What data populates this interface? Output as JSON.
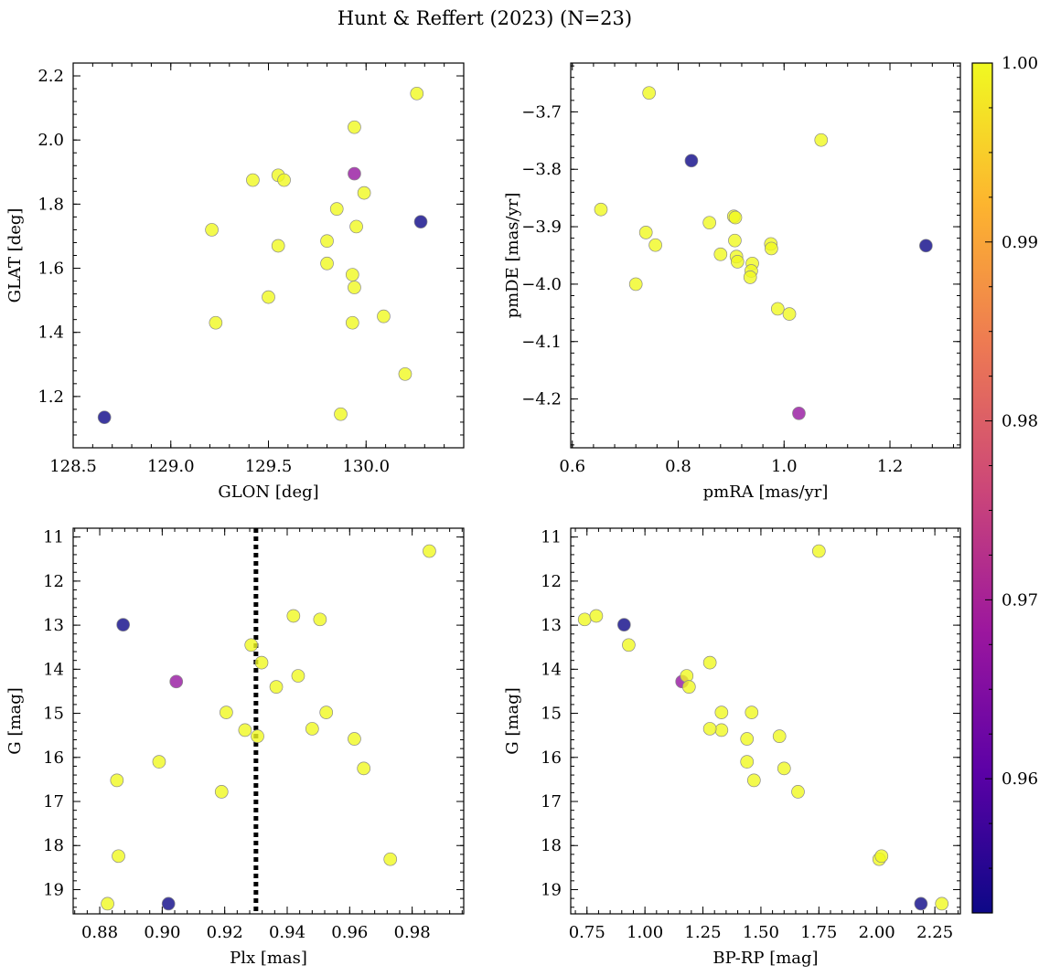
{
  "figure": {
    "title": "Hunt & Reffert (2023) (N=23)"
  },
  "colors": {
    "point_edge": "#8a8a8a",
    "frame": "#000000",
    "vline": "#000000",
    "colormap": [
      "#0d0887",
      "#5c01a6",
      "#9c179e",
      "#cc4778",
      "#ed7953",
      "#fdb42f",
      "#f0f921"
    ],
    "colormap_name": "plasma",
    "point_alpha": 0.8
  },
  "colorbar": {
    "range": [
      0.9525,
      1.0
    ],
    "ticks": [
      {
        "value": 0.96,
        "label": "0.96"
      },
      {
        "value": 0.97,
        "label": "0.97"
      },
      {
        "value": 0.98,
        "label": "0.98"
      },
      {
        "value": 0.99,
        "label": "0.99"
      },
      {
        "value": 1.0,
        "label": "1.00"
      }
    ]
  },
  "chart_data": [
    {
      "type": "scatter",
      "xlabel": "GLON [deg]",
      "ylabel": "GLAT [deg]",
      "xlim": [
        128.5,
        130.5
      ],
      "ylim": [
        1.04,
        2.24
      ],
      "y_inverted": false,
      "xticks": [
        {
          "value": 128.5,
          "label": "128.5"
        },
        {
          "value": 129.0,
          "label": "129.0"
        },
        {
          "value": 129.5,
          "label": "129.5"
        },
        {
          "value": 130.0,
          "label": "130.0"
        }
      ],
      "yticks": [
        {
          "value": 1.2,
          "label": "1.2"
        },
        {
          "value": 1.4,
          "label": "1.4"
        },
        {
          "value": 1.6,
          "label": "1.6"
        },
        {
          "value": 1.8,
          "label": "1.8"
        },
        {
          "value": 2.0,
          "label": "2.0"
        },
        {
          "value": 2.2,
          "label": "2.2"
        }
      ],
      "x": [
        128.66,
        129.94,
        130.28,
        130.26,
        129.94,
        129.55,
        129.42,
        129.58,
        129.99,
        129.85,
        129.95,
        129.21,
        129.55,
        129.8,
        129.8,
        129.93,
        129.94,
        129.5,
        130.09,
        129.23,
        129.93,
        130.2,
        129.87
      ],
      "y": [
        1.135,
        1.895,
        1.745,
        2.145,
        2.04,
        1.89,
        1.875,
        1.875,
        1.835,
        1.785,
        1.73,
        1.72,
        1.67,
        1.685,
        1.615,
        1.58,
        1.54,
        1.51,
        1.45,
        1.43,
        1.43,
        1.27,
        1.145
      ],
      "c": [
        0.9525,
        0.9675,
        0.9525,
        1.0,
        1.0,
        1.0,
        1.0,
        1.0,
        1.0,
        1.0,
        1.0,
        1.0,
        1.0,
        1.0,
        1.0,
        1.0,
        1.0,
        1.0,
        1.0,
        1.0,
        1.0,
        1.0,
        1.0
      ]
    },
    {
      "type": "scatter",
      "xlabel": "pmRA [mas/yr]",
      "ylabel": "pmDE [mas/yr]",
      "xlim": [
        0.597,
        1.333
      ],
      "ylim": [
        -4.285,
        -3.615
      ],
      "y_inverted": false,
      "xticks": [
        {
          "value": 0.6,
          "label": "0.6"
        },
        {
          "value": 0.8,
          "label": "0.8"
        },
        {
          "value": 1.0,
          "label": "1.0"
        },
        {
          "value": 1.2,
          "label": "1.2"
        }
      ],
      "yticks": [
        {
          "value": -4.2,
          "label": "−4.2"
        },
        {
          "value": -4.1,
          "label": "−4.1"
        },
        {
          "value": -4.0,
          "label": "−4.0"
        },
        {
          "value": -3.9,
          "label": "−3.9"
        },
        {
          "value": -3.8,
          "label": "−3.8"
        },
        {
          "value": -3.7,
          "label": "−3.7"
        }
      ],
      "x": [
        0.825,
        1.028,
        1.268,
        0.745,
        1.07,
        0.654,
        0.859,
        0.905,
        0.908,
        0.739,
        0.757,
        0.907,
        0.975,
        0.976,
        0.88,
        0.91,
        0.912,
        0.94,
        0.938,
        0.936,
        0.72,
        0.988,
        1.01
      ],
      "y": [
        -3.785,
        -4.225,
        -3.933,
        -3.667,
        -3.749,
        -3.87,
        -3.893,
        -3.882,
        -3.884,
        -3.91,
        -3.932,
        -3.924,
        -3.93,
        -3.938,
        -3.948,
        -3.952,
        -3.961,
        -3.964,
        -3.977,
        -3.988,
        -4.0,
        -4.043,
        -4.052
      ],
      "c": [
        0.9525,
        0.9675,
        0.9525,
        1.0,
        1.0,
        1.0,
        1.0,
        1.0,
        1.0,
        1.0,
        1.0,
        1.0,
        1.0,
        1.0,
        1.0,
        1.0,
        1.0,
        1.0,
        1.0,
        1.0,
        1.0,
        1.0,
        1.0
      ]
    },
    {
      "type": "scatter",
      "xlabel": "Plx [mas]",
      "ylabel": "G [mag]",
      "xlim": [
        0.8715,
        0.9965
      ],
      "ylim": [
        10.8,
        19.55
      ],
      "y_inverted": true,
      "vline": 0.93,
      "xticks": [
        {
          "value": 0.88,
          "label": "0.88"
        },
        {
          "value": 0.9,
          "label": "0.90"
        },
        {
          "value": 0.92,
          "label": "0.92"
        },
        {
          "value": 0.94,
          "label": "0.94"
        },
        {
          "value": 0.96,
          "label": "0.96"
        },
        {
          "value": 0.98,
          "label": "0.98"
        }
      ],
      "yticks": [
        {
          "value": 11,
          "label": "11"
        },
        {
          "value": 12,
          "label": "12"
        },
        {
          "value": 13,
          "label": "13"
        },
        {
          "value": 14,
          "label": "14"
        },
        {
          "value": 15,
          "label": "15"
        },
        {
          "value": 16,
          "label": "16"
        },
        {
          "value": 17,
          "label": "17"
        },
        {
          "value": 18,
          "label": "18"
        },
        {
          "value": 19,
          "label": "19"
        }
      ],
      "x": [
        0.8875,
        0.9045,
        0.902,
        0.9855,
        0.942,
        0.9505,
        0.9285,
        0.9318,
        0.9435,
        0.9365,
        0.9205,
        0.9525,
        0.9265,
        0.948,
        0.9305,
        0.9615,
        0.899,
        0.9645,
        0.8855,
        0.919,
        0.886,
        0.973,
        0.8825
      ],
      "y": [
        12.99,
        14.28,
        19.32,
        11.32,
        12.79,
        12.87,
        13.45,
        13.85,
        14.15,
        14.4,
        14.98,
        14.98,
        15.38,
        15.35,
        15.52,
        15.58,
        16.1,
        16.25,
        16.52,
        16.78,
        18.24,
        18.31,
        19.32
      ],
      "c": [
        0.9525,
        0.9675,
        0.9525,
        1.0,
        1.0,
        1.0,
        1.0,
        1.0,
        1.0,
        1.0,
        1.0,
        1.0,
        1.0,
        1.0,
        1.0,
        1.0,
        1.0,
        1.0,
        1.0,
        1.0,
        1.0,
        1.0,
        1.0
      ]
    },
    {
      "type": "scatter",
      "xlabel": "BP-RP [mag]",
      "ylabel": "G [mag]",
      "xlim": [
        0.68,
        2.36
      ],
      "ylim": [
        10.8,
        19.55
      ],
      "y_inverted": true,
      "xticks": [
        {
          "value": 0.75,
          "label": "0.75"
        },
        {
          "value": 1.0,
          "label": "1.00"
        },
        {
          "value": 1.25,
          "label": "1.25"
        },
        {
          "value": 1.5,
          "label": "1.50"
        },
        {
          "value": 1.75,
          "label": "1.75"
        },
        {
          "value": 2.0,
          "label": "2.00"
        },
        {
          "value": 2.25,
          "label": "2.25"
        }
      ],
      "yticks": [
        {
          "value": 11,
          "label": "11"
        },
        {
          "value": 12,
          "label": "12"
        },
        {
          "value": 13,
          "label": "13"
        },
        {
          "value": 14,
          "label": "14"
        },
        {
          "value": 15,
          "label": "15"
        },
        {
          "value": 16,
          "label": "16"
        },
        {
          "value": 17,
          "label": "17"
        },
        {
          "value": 18,
          "label": "18"
        },
        {
          "value": 19,
          "label": "19"
        }
      ],
      "x": [
        0.91,
        1.16,
        2.19,
        1.75,
        0.74,
        0.79,
        0.93,
        1.28,
        1.18,
        1.19,
        1.33,
        1.46,
        1.33,
        1.28,
        1.58,
        1.44,
        1.44,
        1.6,
        1.47,
        1.66,
        2.01,
        2.02,
        2.28
      ],
      "y": [
        12.99,
        14.28,
        19.32,
        11.32,
        12.87,
        12.79,
        13.45,
        13.85,
        14.15,
        14.4,
        14.98,
        14.98,
        15.38,
        15.35,
        15.52,
        15.58,
        16.1,
        16.25,
        16.52,
        16.78,
        18.31,
        18.24,
        19.32
      ],
      "c": [
        0.9525,
        0.9675,
        0.9525,
        1.0,
        1.0,
        1.0,
        1.0,
        1.0,
        1.0,
        1.0,
        1.0,
        1.0,
        1.0,
        1.0,
        1.0,
        1.0,
        1.0,
        1.0,
        1.0,
        1.0,
        1.0,
        1.0,
        1.0
      ]
    }
  ]
}
